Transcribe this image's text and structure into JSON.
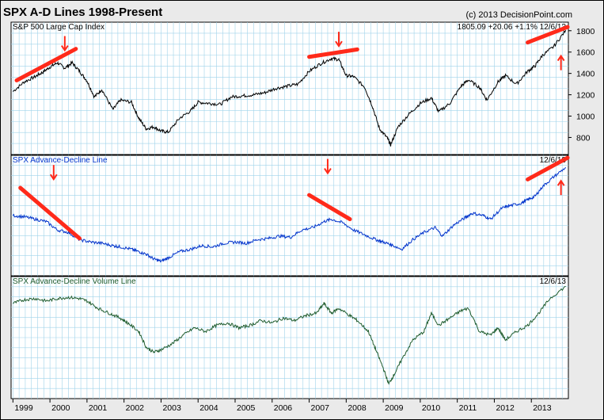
{
  "header": {
    "title": "SPX A-D Lines 1998-Present",
    "copyright": "(c) 2013 DecisionPoint.com"
  },
  "chart_data": [
    {
      "type": "line",
      "panel": "price",
      "label": "S&P 500 Large Cap Index",
      "readout": "1805.09 +20.06 +1.1% 12/6/13",
      "line_color": "#000000",
      "y_ticks": [
        800,
        1000,
        1200,
        1400,
        1600,
        1800
      ],
      "ylim": [
        640,
        1880
      ],
      "series": [
        {
          "x": [
            1999.0,
            1999.3,
            1999.6,
            1999.8,
            2000.0,
            2000.2,
            2000.4,
            2000.6,
            2000.8,
            2001.0,
            2001.2,
            2001.4,
            2001.7,
            2001.9,
            2002.2,
            2002.4,
            2002.6,
            2002.8,
            2003.0,
            2003.2,
            2003.5,
            2003.8,
            2004.0,
            2004.3,
            2004.6,
            2004.9,
            2005.2,
            2005.5,
            2005.8,
            2006.1,
            2006.4,
            2006.7,
            2007.0,
            2007.3,
            2007.6,
            2007.8,
            2008.0,
            2008.2,
            2008.5,
            2008.7,
            2008.9,
            2009.1,
            2009.2,
            2009.4,
            2009.7,
            2010.0,
            2010.3,
            2010.5,
            2010.8,
            2011.1,
            2011.3,
            2011.6,
            2011.8,
            2012.1,
            2012.3,
            2012.6,
            2012.9,
            2013.1,
            2013.3,
            2013.6,
            2013.93
          ],
          "values": [
            1230,
            1320,
            1370,
            1410,
            1460,
            1500,
            1450,
            1500,
            1420,
            1330,
            1180,
            1250,
            1060,
            1150,
            1130,
            980,
            880,
            900,
            860,
            850,
            980,
            1050,
            1130,
            1120,
            1110,
            1180,
            1190,
            1200,
            1220,
            1260,
            1280,
            1300,
            1420,
            1490,
            1540,
            1530,
            1380,
            1370,
            1270,
            1100,
            880,
            800,
            730,
            900,
            1020,
            1120,
            1170,
            1040,
            1120,
            1280,
            1340,
            1270,
            1150,
            1320,
            1380,
            1300,
            1420,
            1470,
            1570,
            1650,
            1805
          ]
        }
      ],
      "annotations": [
        "topping trendline 1999-2000",
        "topping trendline 2007",
        "rising trendline 2013",
        "down arrow 2000",
        "down arrow 2007",
        "down arrow 2013",
        "up arrow 2013"
      ]
    },
    {
      "type": "line",
      "panel": "ad_line",
      "label": "SPX Advance-Decline Line",
      "readout": "12/6/13",
      "line_color": "#0033cc",
      "ylim": [
        0,
        100
      ],
      "series": [
        {
          "x": [
            1999.0,
            1999.3,
            1999.6,
            1999.9,
            2000.2,
            2000.5,
            2000.8,
            2001.1,
            2001.4,
            2001.7,
            2001.9,
            2002.2,
            2002.4,
            2002.6,
            2002.8,
            2003.0,
            2003.2,
            2003.5,
            2003.8,
            2004.1,
            2004.4,
            2004.7,
            2005.0,
            2005.3,
            2005.6,
            2005.9,
            2006.2,
            2006.5,
            2006.8,
            2007.1,
            2007.4,
            2007.6,
            2007.9,
            2008.2,
            2008.5,
            2008.8,
            2009.0,
            2009.2,
            2009.5,
            2009.8,
            2010.1,
            2010.4,
            2010.6,
            2010.9,
            2011.2,
            2011.4,
            2011.7,
            2011.9,
            2012.2,
            2012.4,
            2012.7,
            2012.9,
            2013.1,
            2013.3,
            2013.6,
            2013.93
          ],
          "values": [
            50,
            49,
            47,
            45,
            38,
            36,
            30,
            28,
            27,
            25,
            24,
            22,
            20,
            18,
            14,
            12,
            15,
            20,
            22,
            25,
            24,
            27,
            28,
            27,
            30,
            31,
            33,
            32,
            38,
            40,
            45,
            47,
            44,
            38,
            34,
            30,
            28,
            26,
            22,
            30,
            36,
            40,
            33,
            42,
            48,
            52,
            50,
            47,
            56,
            58,
            60,
            63,
            66,
            74,
            82,
            90
          ]
        }
      ],
      "annotations": [
        "declining trendline 1999-2000",
        "declining trendline 2007-2008",
        "rising trendline 2013",
        "down arrow 2000",
        "down arrow 2007",
        "up arrow 2013"
      ]
    },
    {
      "type": "line",
      "panel": "ad_volume_line",
      "label": "SPX Advance-Decline Volume Line",
      "readout": "12/6/13",
      "line_color": "#1f5c2e",
      "ylim": [
        0,
        100
      ],
      "series": [
        {
          "x": [
            1999.0,
            1999.3,
            1999.6,
            1999.9,
            2000.2,
            2000.5,
            2000.8,
            2001.0,
            2001.3,
            2001.6,
            2001.9,
            2002.1,
            2002.4,
            2002.6,
            2002.8,
            2003.0,
            2003.3,
            2003.6,
            2003.9,
            2004.2,
            2004.5,
            2004.8,
            2005.1,
            2005.4,
            2005.7,
            2006.0,
            2006.3,
            2006.6,
            2006.9,
            2007.2,
            2007.4,
            2007.6,
            2007.8,
            2008.1,
            2008.3,
            2008.6,
            2008.8,
            2009.0,
            2009.15,
            2009.3,
            2009.5,
            2009.8,
            2010.1,
            2010.3,
            2010.5,
            2010.8,
            2011.1,
            2011.3,
            2011.6,
            2011.9,
            2012.1,
            2012.3,
            2012.6,
            2012.9,
            2013.2,
            2013.5,
            2013.93
          ],
          "values": [
            78,
            81,
            82,
            80,
            82,
            83,
            82,
            80,
            74,
            70,
            66,
            62,
            55,
            42,
            38,
            40,
            45,
            52,
            58,
            55,
            60,
            62,
            58,
            60,
            64,
            62,
            66,
            64,
            68,
            70,
            78,
            70,
            74,
            68,
            64,
            55,
            40,
            25,
            12,
            20,
            32,
            48,
            55,
            70,
            60,
            66,
            72,
            74,
            55,
            52,
            58,
            48,
            55,
            60,
            70,
            82,
            92
          ]
        }
      ]
    }
  ],
  "x_axis": {
    "labels": [
      "1999",
      "2000",
      "2001",
      "2002",
      "2003",
      "2004",
      "2005",
      "2006",
      "2007",
      "2008",
      "2009",
      "2010",
      "2011",
      "2012",
      "2013"
    ]
  }
}
